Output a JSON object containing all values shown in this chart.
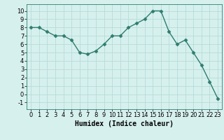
{
  "x": [
    0,
    1,
    2,
    3,
    4,
    5,
    6,
    7,
    8,
    9,
    10,
    11,
    12,
    13,
    14,
    15,
    16,
    17,
    18,
    19,
    20,
    21,
    22,
    23
  ],
  "y": [
    8,
    8,
    7.5,
    7,
    7,
    6.5,
    5,
    4.8,
    5.2,
    6,
    7,
    7,
    8,
    8.5,
    9,
    10,
    10,
    7.5,
    6,
    6.5,
    5,
    3.5,
    1.5,
    -0.5
  ],
  "line_color": "#2e7d6e",
  "marker": "D",
  "marker_size": 2.5,
  "bg_color": "#d6f0ee",
  "grid_color": "#b8dbd8",
  "xlabel": "Humidex (Indice chaleur)",
  "xlabel_fontsize": 7,
  "tick_fontsize": 6,
  "ylim": [
    -1.8,
    10.8
  ],
  "xlim": [
    -0.5,
    23.5
  ],
  "yticks": [
    -1,
    0,
    1,
    2,
    3,
    4,
    5,
    6,
    7,
    8,
    9,
    10
  ],
  "xticks": [
    0,
    1,
    2,
    3,
    4,
    5,
    6,
    7,
    8,
    9,
    10,
    11,
    12,
    13,
    14,
    15,
    16,
    17,
    18,
    19,
    20,
    21,
    22,
    23
  ]
}
